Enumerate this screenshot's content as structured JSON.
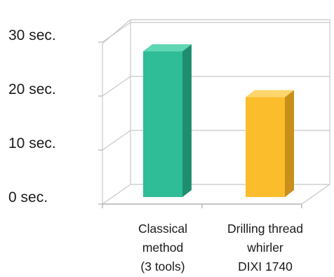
{
  "chart_data": {
    "type": "bar",
    "categories": [
      [
        "Classical",
        "method",
        "(3 tools)"
      ],
      [
        "Drilling thread",
        "whirler",
        "DIXI 1740"
      ]
    ],
    "values": [
      27,
      18.5
    ],
    "yticks": [
      "0 sec.",
      "10 sec.",
      "20 sec.",
      "30 sec."
    ],
    "ylim": [
      0,
      30
    ],
    "grid": true,
    "legend": "none",
    "colors": {
      "bar1_front": "#2ebd97",
      "bar1_side": "#1f8e70",
      "bar1_top": "#5fd6b4",
      "bar2_front": "#fbbd2b",
      "bar2_side": "#c8901a",
      "bar2_top": "#fdd56c",
      "grid": "#c8c8c8",
      "axis": "#b4b4b4"
    }
  }
}
